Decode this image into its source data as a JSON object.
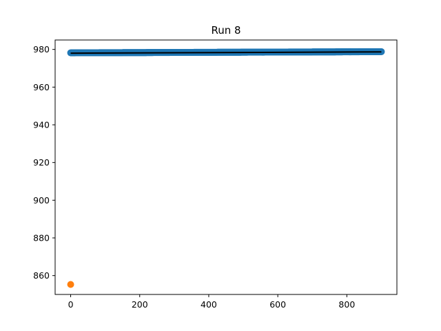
{
  "chart_data": {
    "type": "scatter",
    "title": "Run 8",
    "xlabel": "",
    "ylabel": "",
    "xlim": [
      -45,
      945
    ],
    "ylim": [
      850,
      985
    ],
    "x_ticks": [
      0,
      200,
      400,
      600,
      800
    ],
    "y_ticks": [
      860,
      880,
      900,
      920,
      940,
      960,
      980
    ],
    "x_tick_labels": [
      "0",
      "200",
      "400",
      "600",
      "800"
    ],
    "y_tick_labels": [
      "860",
      "880",
      "900",
      "920",
      "940",
      "960",
      "980"
    ],
    "grid": false,
    "legend": "none",
    "series": [
      {
        "kind": "scatter",
        "color": "#1f77b4",
        "description": "dense run of points along the top",
        "x_range": [
          0,
          900
        ],
        "y_start": 978.2,
        "y_end": 978.8
      },
      {
        "kind": "line",
        "color": "#000000",
        "description": "fitted trend line",
        "x": [
          0,
          900
        ],
        "y": [
          978.0,
          978.7
        ]
      },
      {
        "kind": "scatter",
        "color": "#ff7f0e",
        "description": "single outlier point",
        "x": [
          0
        ],
        "y": [
          855.3
        ]
      }
    ]
  }
}
